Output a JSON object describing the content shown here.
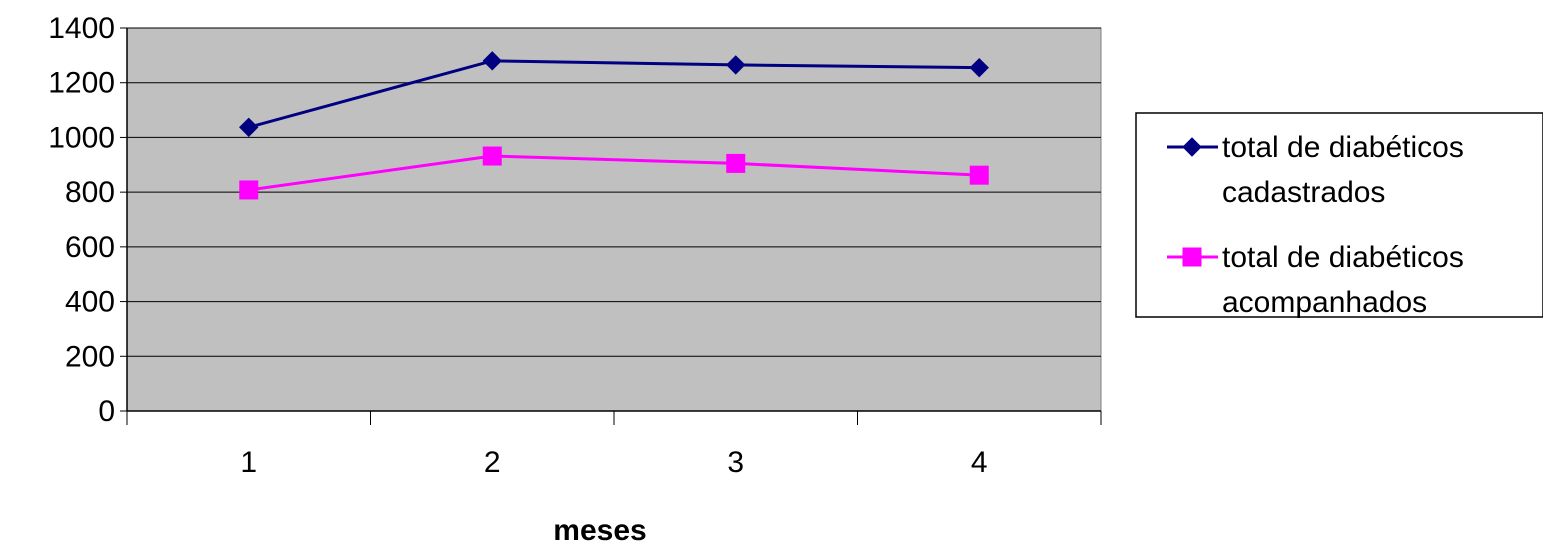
{
  "chart_data": {
    "type": "line",
    "title": "",
    "xlabel": "meses",
    "ylabel": "",
    "categories": [
      "1",
      "2",
      "3",
      "4"
    ],
    "ylim": [
      0,
      1400
    ],
    "yticks": [
      "0",
      "200",
      "400",
      "600",
      "800",
      "1000",
      "1200",
      "1400"
    ],
    "grid": true,
    "legend_position": "right",
    "plot_background": "#C0C0C0",
    "series": [
      {
        "name_lines": [
          "total de diabéticos",
          "cadastrados"
        ],
        "values": [
          1037,
          1280,
          1265,
          1255
        ],
        "color": "#000080",
        "marker": "diamond"
      },
      {
        "name_lines": [
          "total de diabéticos",
          "acompanhados"
        ],
        "values": [
          808,
          932,
          905,
          862
        ],
        "color": "#FF00FF",
        "marker": "square"
      }
    ]
  }
}
